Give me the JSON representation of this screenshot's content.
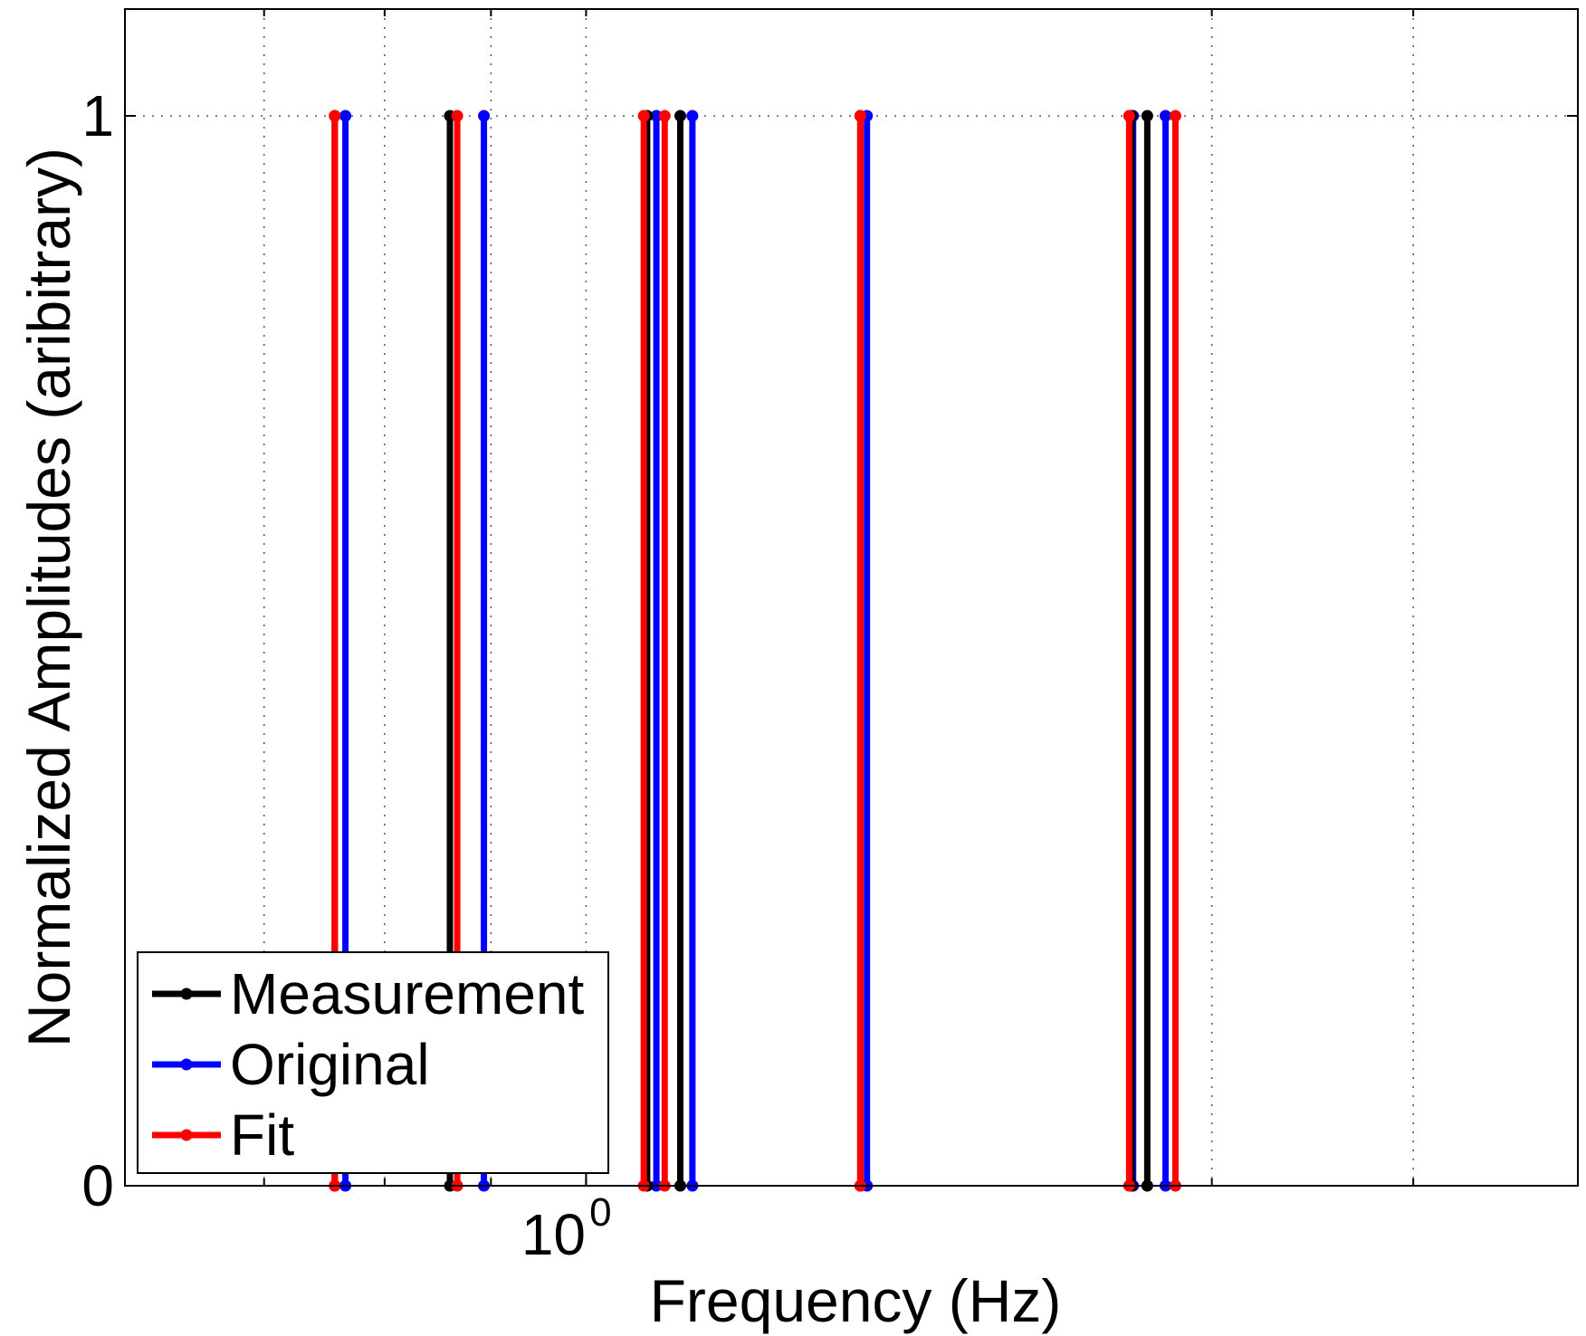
{
  "chart_data": {
    "type": "line",
    "title": "",
    "xlabel": "Frequency (Hz)",
    "ylabel": "Normalized Amplitudes (aribitrary)",
    "x_scale": "log",
    "xlim": [
      0.6,
      3.0
    ],
    "ylim": [
      -0.0,
      1.2
    ],
    "y_ticks": [
      {
        "value": 0,
        "label": "0"
      },
      {
        "value": 1,
        "label": "1"
      }
    ],
    "x_ticks": [
      {
        "value": 1.0,
        "base": "10",
        "exponent": "0"
      }
    ],
    "x_minor_grid": [
      0.7,
      0.8,
      0.9,
      1.0,
      2.0,
      2.5
    ],
    "grid": true,
    "legend_position": "bottom-left",
    "series": [
      {
        "name": "Measurement",
        "color": "#000000",
        "x": [
          0.757,
          0.86,
          1.07,
          1.11,
          1.355,
          1.83,
          1.862
        ]
      },
      {
        "name": "Original",
        "color": "#0000ff",
        "x": [
          0.766,
          0.893,
          1.081,
          1.125,
          1.365,
          1.833,
          1.9
        ]
      },
      {
        "name": "Fit",
        "color": "#ff0000",
        "x": [
          0.757,
          0.867,
          1.066,
          1.091,
          1.355,
          1.825,
          1.921
        ]
      }
    ]
  }
}
